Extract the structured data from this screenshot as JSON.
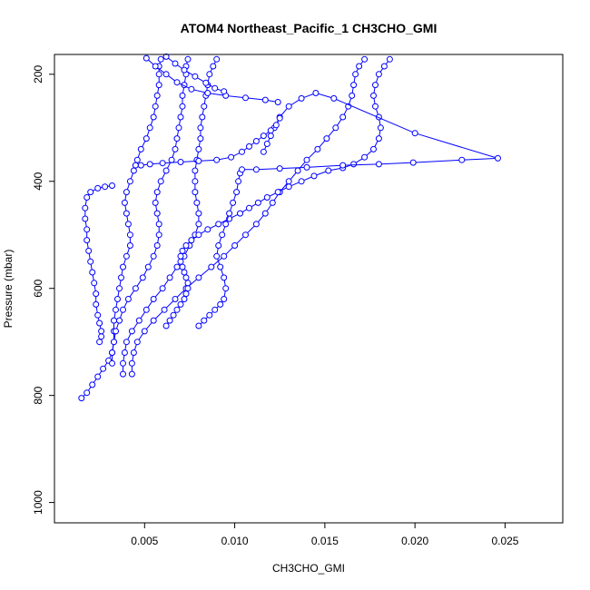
{
  "chart_data": {
    "type": "scatter",
    "title": "ATOM4 Northeast_Pacific_1 CH3CHO_GMI",
    "xlabel": "CH3CHO_GMI",
    "ylabel": "Pressure (mbar)",
    "xlim": [
      0.0,
      0.0282
    ],
    "ylim": [
      1038,
      163
    ],
    "y_reversed": true,
    "x_ticks": [
      0.005,
      0.01,
      0.015,
      0.02,
      0.025
    ],
    "x_tick_labels": [
      "0.005",
      "0.010",
      "0.015",
      "0.020",
      "0.025"
    ],
    "y_ticks": [
      200,
      400,
      600,
      800,
      1000
    ],
    "y_tick_labels": [
      "200",
      "400",
      "600",
      "800",
      "1000"
    ],
    "marker": "open-circle",
    "color": "#0000ff",
    "grid": false,
    "legend": "none",
    "series": [
      {
        "points": [
          [
            0.0015,
            805
          ],
          [
            0.0018,
            795
          ],
          [
            0.0021,
            780
          ],
          [
            0.0024,
            765
          ],
          [
            0.0027,
            750
          ],
          [
            0.003,
            735
          ],
          [
            0.0032,
            720
          ],
          [
            0.0033,
            700
          ],
          [
            0.0033,
            680
          ],
          [
            0.0033,
            660
          ],
          [
            0.0034,
            640
          ],
          [
            0.0035,
            620
          ],
          [
            0.0036,
            600
          ],
          [
            0.0037,
            580
          ],
          [
            0.0038,
            560
          ],
          [
            0.004,
            540
          ],
          [
            0.0042,
            520
          ],
          [
            0.0042,
            500
          ],
          [
            0.0041,
            480
          ],
          [
            0.004,
            460
          ],
          [
            0.0039,
            440
          ],
          [
            0.004,
            420
          ],
          [
            0.0042,
            400
          ],
          [
            0.0044,
            380
          ],
          [
            0.0046,
            360
          ],
          [
            0.0048,
            340
          ],
          [
            0.0051,
            320
          ],
          [
            0.0053,
            300
          ],
          [
            0.0055,
            280
          ],
          [
            0.0056,
            260
          ],
          [
            0.0057,
            240
          ],
          [
            0.0058,
            220
          ],
          [
            0.0058,
            200
          ],
          [
            0.0058,
            185
          ],
          [
            0.0059,
            172
          ]
        ]
      },
      {
        "points": [
          [
            0.0025,
            700
          ],
          [
            0.0026,
            690
          ],
          [
            0.0026,
            680
          ],
          [
            0.0025,
            665
          ],
          [
            0.0024,
            650
          ],
          [
            0.0023,
            630
          ],
          [
            0.0023,
            610
          ],
          [
            0.0022,
            590
          ],
          [
            0.0021,
            570
          ],
          [
            0.002,
            550
          ],
          [
            0.0019,
            530
          ],
          [
            0.0018,
            510
          ],
          [
            0.0018,
            490
          ],
          [
            0.0017,
            470
          ],
          [
            0.0017,
            450
          ],
          [
            0.0018,
            430
          ],
          [
            0.002,
            420
          ],
          [
            0.0024,
            413
          ],
          [
            0.0028,
            410
          ],
          [
            0.0032,
            408
          ]
        ]
      },
      {
        "points": [
          [
            0.0032,
            740
          ],
          [
            0.0032,
            720
          ],
          [
            0.0033,
            700
          ],
          [
            0.0034,
            680
          ],
          [
            0.0036,
            660
          ],
          [
            0.0038,
            640
          ],
          [
            0.0041,
            620
          ],
          [
            0.0045,
            600
          ],
          [
            0.0049,
            580
          ],
          [
            0.0052,
            560
          ],
          [
            0.0055,
            540
          ],
          [
            0.0057,
            520
          ],
          [
            0.0058,
            500
          ],
          [
            0.0058,
            480
          ],
          [
            0.0057,
            460
          ],
          [
            0.0056,
            440
          ],
          [
            0.0057,
            420
          ],
          [
            0.0059,
            400
          ],
          [
            0.0062,
            380
          ],
          [
            0.0065,
            360
          ],
          [
            0.0067,
            340
          ],
          [
            0.0068,
            320
          ],
          [
            0.0069,
            300
          ],
          [
            0.007,
            280
          ],
          [
            0.0071,
            260
          ],
          [
            0.0071,
            240
          ],
          [
            0.0072,
            220
          ],
          [
            0.0073,
            200
          ],
          [
            0.0073,
            185
          ],
          [
            0.0074,
            172
          ]
        ]
      },
      {
        "points": [
          [
            0.0038,
            760
          ],
          [
            0.0038,
            740
          ],
          [
            0.0039,
            720
          ],
          [
            0.004,
            700
          ],
          [
            0.0043,
            680
          ],
          [
            0.0047,
            660
          ],
          [
            0.0051,
            640
          ],
          [
            0.0055,
            620
          ],
          [
            0.006,
            600
          ],
          [
            0.0064,
            580
          ],
          [
            0.0068,
            560
          ],
          [
            0.0072,
            540
          ],
          [
            0.0075,
            520
          ],
          [
            0.0078,
            500
          ],
          [
            0.008,
            480
          ],
          [
            0.008,
            460
          ],
          [
            0.0079,
            440
          ],
          [
            0.0078,
            420
          ],
          [
            0.0078,
            400
          ],
          [
            0.0078,
            380
          ],
          [
            0.0079,
            360
          ],
          [
            0.008,
            340
          ],
          [
            0.0081,
            320
          ],
          [
            0.0081,
            300
          ],
          [
            0.0082,
            280
          ],
          [
            0.0083,
            260
          ],
          [
            0.0084,
            240
          ],
          [
            0.0085,
            220
          ],
          [
            0.0086,
            200
          ],
          [
            0.0088,
            185
          ],
          [
            0.009,
            172
          ]
        ]
      },
      {
        "points": [
          [
            0.0043,
            760
          ],
          [
            0.0043,
            740
          ],
          [
            0.0044,
            720
          ],
          [
            0.0046,
            700
          ],
          [
            0.005,
            680
          ],
          [
            0.0055,
            660
          ],
          [
            0.0061,
            640
          ],
          [
            0.0067,
            620
          ],
          [
            0.0073,
            600
          ],
          [
            0.008,
            580
          ],
          [
            0.0087,
            560
          ],
          [
            0.0094,
            540
          ],
          [
            0.01,
            520
          ],
          [
            0.0106,
            500
          ],
          [
            0.0112,
            480
          ],
          [
            0.0117,
            460
          ],
          [
            0.0121,
            440
          ],
          [
            0.0125,
            420
          ],
          [
            0.013,
            400
          ],
          [
            0.0135,
            380
          ],
          [
            0.014,
            360
          ],
          [
            0.0146,
            340
          ],
          [
            0.0151,
            320
          ],
          [
            0.0156,
            300
          ],
          [
            0.016,
            280
          ],
          [
            0.0163,
            260
          ],
          [
            0.0165,
            240
          ],
          [
            0.0166,
            220
          ],
          [
            0.0167,
            200
          ],
          [
            0.0169,
            185
          ],
          [
            0.0172,
            172
          ]
        ]
      },
      {
        "points": [
          [
            0.0062,
            670
          ],
          [
            0.0064,
            660
          ],
          [
            0.0066,
            650
          ],
          [
            0.0068,
            640
          ],
          [
            0.007,
            630
          ],
          [
            0.0072,
            620
          ],
          [
            0.0073,
            610
          ],
          [
            0.0074,
            600
          ],
          [
            0.0074,
            590
          ],
          [
            0.0073,
            580
          ],
          [
            0.0072,
            570
          ],
          [
            0.0071,
            560
          ],
          [
            0.007,
            550
          ],
          [
            0.007,
            540
          ],
          [
            0.0071,
            530
          ],
          [
            0.0073,
            520
          ],
          [
            0.0076,
            510
          ],
          [
            0.008,
            500
          ],
          [
            0.0085,
            490
          ],
          [
            0.0091,
            480
          ],
          [
            0.0097,
            470
          ],
          [
            0.0103,
            460
          ],
          [
            0.0108,
            450
          ],
          [
            0.0113,
            440
          ],
          [
            0.0118,
            430
          ],
          [
            0.0124,
            420
          ],
          [
            0.013,
            410
          ],
          [
            0.0137,
            400
          ],
          [
            0.0144,
            390
          ],
          [
            0.0152,
            380
          ],
          [
            0.016,
            375
          ],
          [
            0.0166,
            368
          ],
          [
            0.0172,
            355
          ],
          [
            0.0177,
            340
          ],
          [
            0.018,
            320
          ],
          [
            0.0181,
            300
          ],
          [
            0.018,
            280
          ],
          [
            0.0178,
            260
          ],
          [
            0.0177,
            240
          ],
          [
            0.0178,
            220
          ],
          [
            0.018,
            200
          ],
          [
            0.0183,
            185
          ],
          [
            0.0186,
            172
          ]
        ]
      },
      {
        "points": [
          [
            0.008,
            670
          ],
          [
            0.0083,
            660
          ],
          [
            0.0086,
            650
          ],
          [
            0.0089,
            640
          ],
          [
            0.0092,
            630
          ],
          [
            0.0094,
            620
          ],
          [
            0.0095,
            600
          ],
          [
            0.0094,
            580
          ],
          [
            0.0092,
            560
          ],
          [
            0.009,
            540
          ],
          [
            0.0091,
            520
          ],
          [
            0.0093,
            500
          ],
          [
            0.0095,
            480
          ],
          [
            0.0097,
            460
          ],
          [
            0.0099,
            440
          ],
          [
            0.0101,
            420
          ],
          [
            0.0102,
            400
          ],
          [
            0.0103,
            385
          ],
          [
            0.0104,
            378
          ],
          [
            0.0112,
            378
          ],
          [
            0.0125,
            376
          ],
          [
            0.014,
            374
          ],
          [
            0.016,
            370
          ],
          [
            0.018,
            368
          ],
          [
            0.0199,
            365
          ],
          [
            0.0226,
            360
          ],
          [
            0.0246,
            357
          ],
          [
            0.02,
            310
          ],
          [
            0.0155,
            245
          ],
          [
            0.0145,
            235
          ],
          [
            0.0137,
            245
          ],
          [
            0.013,
            260
          ],
          [
            0.0125,
            280
          ],
          [
            0.0122,
            300
          ],
          [
            0.012,
            315
          ],
          [
            0.0118,
            330
          ],
          [
            0.0116,
            345
          ]
        ]
      },
      {
        "points": [
          [
            0.0045,
            370
          ],
          [
            0.0048,
            370
          ],
          [
            0.0053,
            368
          ],
          [
            0.006,
            366
          ],
          [
            0.007,
            364
          ],
          [
            0.008,
            362
          ],
          [
            0.009,
            360
          ],
          [
            0.0098,
            355
          ],
          [
            0.0104,
            345
          ],
          [
            0.0108,
            335
          ],
          [
            0.0112,
            325
          ],
          [
            0.0116,
            315
          ],
          [
            0.012,
            305
          ],
          [
            0.0123,
            295
          ],
          [
            0.0125,
            282
          ]
        ]
      },
      {
        "points": [
          [
            0.0051,
            170
          ],
          [
            0.0056,
            185
          ],
          [
            0.0062,
            200
          ],
          [
            0.0068,
            215
          ],
          [
            0.0076,
            228
          ],
          [
            0.0085,
            235
          ],
          [
            0.0095,
            240
          ],
          [
            0.0106,
            244
          ],
          [
            0.0117,
            248
          ],
          [
            0.0124,
            252
          ]
        ]
      },
      {
        "points": [
          [
            0.0062,
            167
          ],
          [
            0.0067,
            180
          ],
          [
            0.0072,
            192
          ],
          [
            0.0078,
            204
          ],
          [
            0.0084,
            216
          ],
          [
            0.0089,
            226
          ],
          [
            0.0094,
            232
          ]
        ]
      }
    ]
  }
}
